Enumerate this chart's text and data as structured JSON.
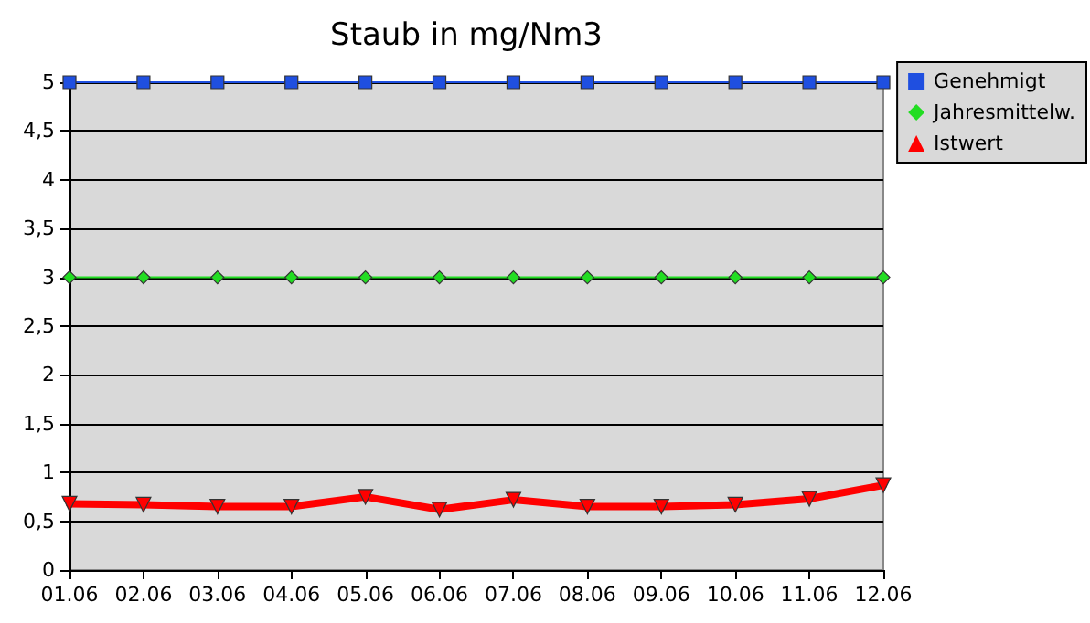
{
  "chart_data": {
    "type": "line",
    "title": "Staub in mg/Nm3",
    "categories": [
      "01.06",
      "02.06",
      "03.06",
      "04.06",
      "05.06",
      "06.06",
      "07.06",
      "08.06",
      "09.06",
      "10.06",
      "11.06",
      "12.06"
    ],
    "series": [
      {
        "name": "Genehmigt",
        "color": "#1f4fe0",
        "marker": "square",
        "values": [
          5,
          5,
          5,
          5,
          5,
          5,
          5,
          5,
          5,
          5,
          5,
          5
        ]
      },
      {
        "name": "Jahresmittelw.",
        "color": "#22dd22",
        "marker": "diamond",
        "values": [
          3,
          3,
          3,
          3,
          3,
          3,
          3,
          3,
          3,
          3,
          3,
          3
        ]
      },
      {
        "name": "Istwert",
        "color": "#ff0000",
        "marker": "triangle",
        "values": [
          0.68,
          0.67,
          0.65,
          0.65,
          0.75,
          0.62,
          0.72,
          0.65,
          0.65,
          0.67,
          0.73,
          0.87
        ]
      }
    ],
    "ylim": [
      0,
      5
    ],
    "yticks": [
      0,
      {
        "value": 0.5,
        "label": "0,5"
      },
      1,
      {
        "value": 1.5,
        "label": "1,5"
      },
      2,
      {
        "value": 2.5,
        "label": "2,5"
      },
      3,
      {
        "value": 3.5,
        "label": "3,5"
      },
      4,
      {
        "value": 4.5,
        "label": "4,5"
      },
      5
    ],
    "grid": "y",
    "legend": "right"
  }
}
